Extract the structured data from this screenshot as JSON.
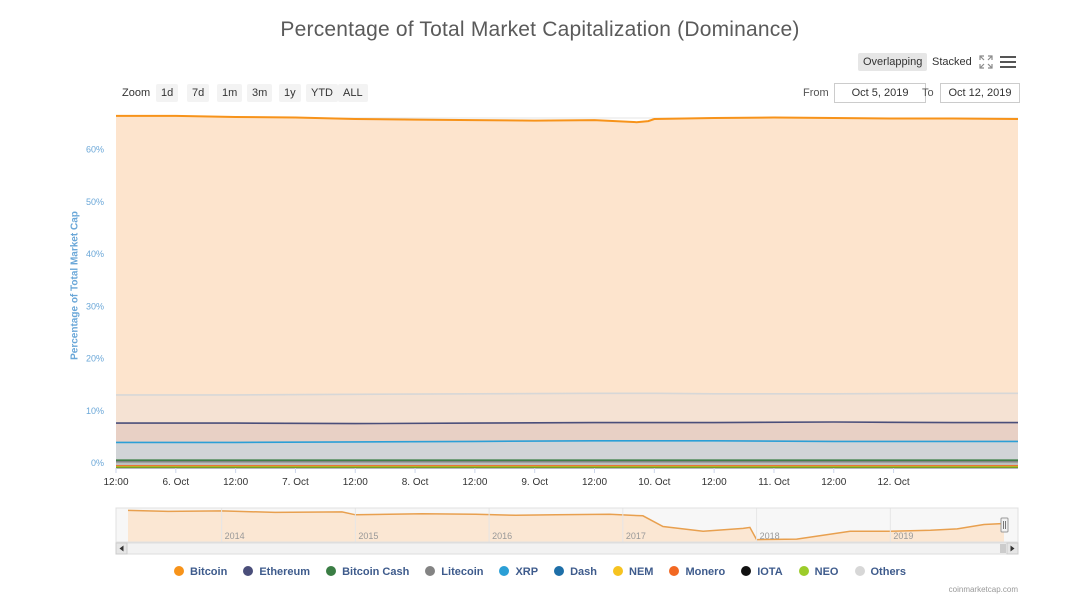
{
  "chart_data": {
    "type": "area",
    "title": "Percentage of Total Market Capitalization (Dominance)",
    "ylabel": "Percentage of Total Market Cap",
    "ylim": [
      0,
      67
    ],
    "yticks": [
      "0%",
      "10%",
      "20%",
      "30%",
      "40%",
      "50%",
      "60%"
    ],
    "ytick_values": [
      0,
      10,
      20,
      30,
      40,
      50,
      60
    ],
    "xlim": [
      0,
      7.54
    ],
    "xticks": [
      "12:00",
      "6. Oct",
      "12:00",
      "7. Oct",
      "12:00",
      "8. Oct",
      "12:00",
      "9. Oct",
      "12:00",
      "10. Oct",
      "12:00",
      "11. Oct",
      "12:00",
      "12. Oct"
    ],
    "xtick_values": [
      0,
      0.5,
      1,
      1.5,
      2,
      2.5,
      3,
      3.5,
      4,
      4.5,
      5,
      5.5,
      6,
      6.5
    ],
    "grid": true,
    "legend_placement": "bottom",
    "series": [
      {
        "name": "Bitcoin",
        "color": "#f7931a",
        "fill": "#fde4cd",
        "x": [
          0,
          0.5,
          1,
          1.5,
          2,
          2.5,
          3,
          3.5,
          4,
          4.35,
          4.45,
          4.5,
          5,
          5.5,
          6,
          6.5,
          7,
          7.54
        ],
        "y": [
          67.4,
          67.4,
          67.2,
          67.1,
          66.8,
          66.7,
          66.6,
          66.5,
          66.6,
          66.2,
          66.4,
          66.8,
          67.0,
          67.1,
          67.0,
          66.9,
          66.9,
          66.8
        ]
      },
      {
        "name": "Others",
        "color": "#d7d7d7",
        "fill": "#f1e1d4",
        "x": [
          0,
          1,
          2,
          3,
          4,
          4.5,
          5,
          6,
          7,
          7.54
        ],
        "y": [
          14.0,
          14.0,
          14.1,
          14.2,
          14.3,
          14.3,
          14.2,
          14.2,
          14.3,
          14.3
        ]
      },
      {
        "name": "Ethereum",
        "color": "#4a4e7a",
        "fill": "#e3c9c0",
        "x": [
          0,
          1,
          2,
          3,
          4,
          5,
          6,
          7,
          7.54
        ],
        "y": [
          8.6,
          8.6,
          8.5,
          8.6,
          8.7,
          8.7,
          8.8,
          8.7,
          8.7
        ]
      },
      {
        "name": "XRP",
        "color": "#2b9fd6",
        "fill": "#c9d6dc",
        "x": [
          0,
          1,
          2,
          3,
          4,
          5,
          6,
          7,
          7.54
        ],
        "y": [
          4.9,
          4.9,
          5.0,
          5.1,
          5.2,
          5.2,
          5.1,
          5.1,
          5.1
        ]
      },
      {
        "name": "Bitcoin Cash",
        "color": "#3a7d44",
        "fill": "#a9c2b9",
        "x": [
          0,
          7.54
        ],
        "y": [
          1.5,
          1.5
        ]
      },
      {
        "name": "Litecoin",
        "color": "#838383",
        "fill": "#bdbdbd",
        "x": [
          0,
          7.54
        ],
        "y": [
          1.2,
          1.2
        ]
      },
      {
        "name": "Dash",
        "color": "#1e6fa8",
        "fill": "#9fb9cf",
        "x": [
          0,
          7.54
        ],
        "y": [
          0.3,
          0.3
        ]
      },
      {
        "name": "NEM",
        "color": "#f6c320",
        "fill": "#f1d98b",
        "x": [
          0,
          7.54
        ],
        "y": [
          0.2,
          0.2
        ]
      },
      {
        "name": "Monero",
        "color": "#f26822",
        "fill": "#f2b590",
        "x": [
          0,
          7.54
        ],
        "y": [
          0.4,
          0.4
        ]
      },
      {
        "name": "IOTA",
        "color": "#111111",
        "fill": "#888888",
        "x": [
          0,
          7.54
        ],
        "y": [
          0.1,
          0.1
        ]
      },
      {
        "name": "NEO",
        "color": "#9ccc2a",
        "fill": "#cfe5a0",
        "x": [
          0,
          7.54
        ],
        "y": [
          0.2,
          0.2
        ]
      }
    ],
    "navigator": {
      "labels": [
        "2014",
        "2015",
        "2016",
        "2017",
        "2018",
        "2019"
      ],
      "label_values": [
        2014,
        2015,
        2016,
        2017,
        2018,
        2019
      ],
      "xlim": [
        2013.3,
        2019.85
      ],
      "ylim": [
        30,
        100
      ],
      "x": [
        2013.3,
        2013.6,
        2014.0,
        2014.4,
        2014.9,
        2015.0,
        2015.5,
        2015.9,
        2016.2,
        2016.5,
        2016.9,
        2017.15,
        2017.3,
        2017.6,
        2017.9,
        2017.95,
        2018.0,
        2018.3,
        2018.7,
        2019.0,
        2019.3,
        2019.5,
        2019.7,
        2019.85
      ],
      "y": [
        95,
        93,
        94,
        91,
        92,
        86,
        88,
        87,
        85,
        86,
        87,
        84,
        62,
        52,
        58,
        60,
        35,
        36,
        52,
        52,
        54,
        57,
        66,
        68
      ]
    }
  },
  "controls": {
    "overlapping": "Overlapping",
    "stacked": "Stacked",
    "zoom_label": "Zoom",
    "zoom_buttons": [
      "1d",
      "7d",
      "1m",
      "3m",
      "1y",
      "YTD",
      "ALL"
    ],
    "from_label": "From",
    "from_value": "Oct 5, 2019",
    "to_label": "To",
    "to_value": "Oct 12, 2019"
  },
  "legend": [
    {
      "name": "Bitcoin",
      "color": "#f7931a"
    },
    {
      "name": "Ethereum",
      "color": "#4a4e7a"
    },
    {
      "name": "Bitcoin Cash",
      "color": "#3a7d44"
    },
    {
      "name": "Litecoin",
      "color": "#838383"
    },
    {
      "name": "XRP",
      "color": "#2b9fd6"
    },
    {
      "name": "Dash",
      "color": "#1e6fa8"
    },
    {
      "name": "NEM",
      "color": "#f6c320"
    },
    {
      "name": "Monero",
      "color": "#f26822"
    },
    {
      "name": "IOTA",
      "color": "#111111"
    },
    {
      "name": "NEO",
      "color": "#9ccc2a"
    },
    {
      "name": "Others",
      "color": "#d7d7d7"
    }
  ],
  "credit": "coinmarketcap.com",
  "icons": {
    "fullscreen": "fullscreen-icon",
    "menu": "menu-icon"
  }
}
